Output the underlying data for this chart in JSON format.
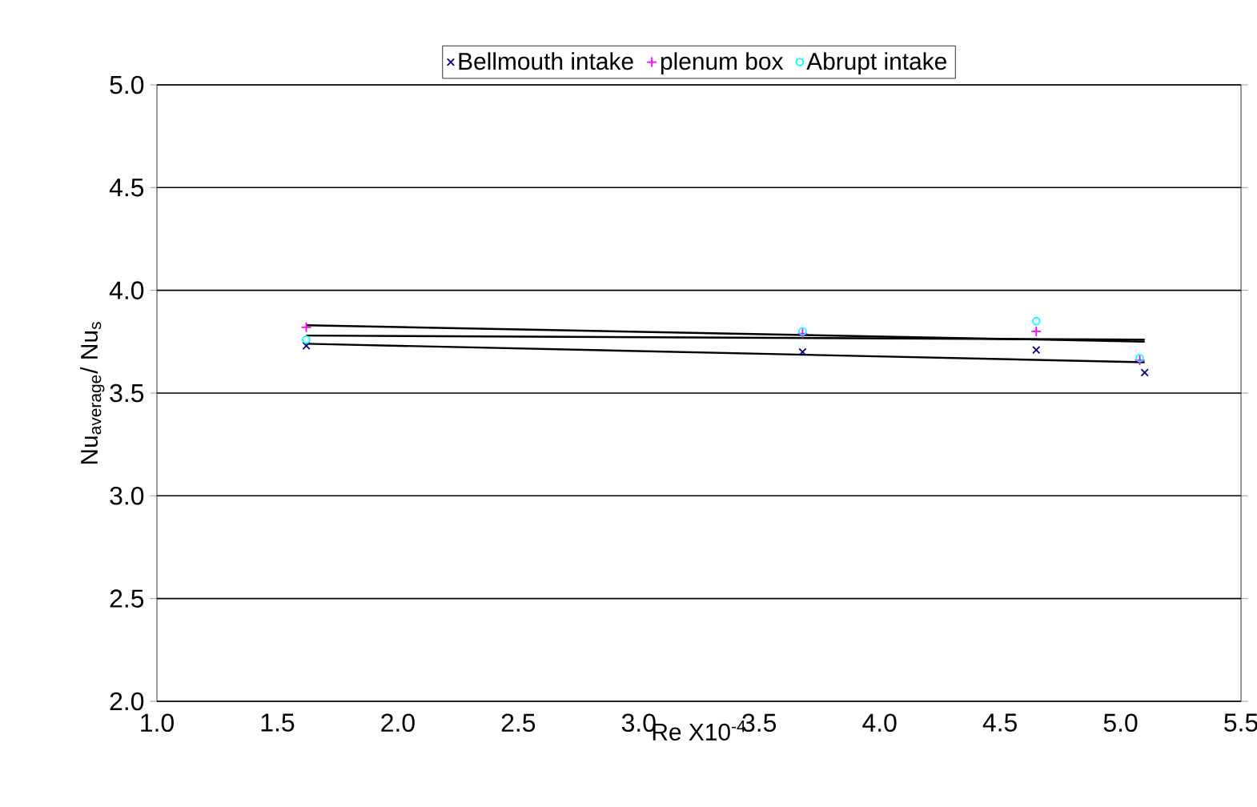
{
  "chart_data": {
    "type": "scatter",
    "xlabel": "Re X10$^{-4}$",
    "ylabel": "Nu$_{average}$/ Nu$_{s}$",
    "xlim": [
      1.0,
      5.5
    ],
    "ylim": [
      2.0,
      5.0
    ],
    "xticks": [
      {
        "value": 1.0,
        "label": "1.0"
      },
      {
        "value": 1.5,
        "label": "1.5"
      },
      {
        "value": 2.0,
        "label": "2.0"
      },
      {
        "value": 2.5,
        "label": "2.5"
      },
      {
        "value": 3.0,
        "label": "3.0"
      },
      {
        "value": 3.5,
        "label": "3.5"
      },
      {
        "value": 4.0,
        "label": "4.0"
      },
      {
        "value": 4.5,
        "label": "4.5"
      },
      {
        "value": 5.0,
        "label": "5.0"
      },
      {
        "value": 5.5,
        "label": "5.5"
      }
    ],
    "yticks": [
      {
        "value": 2.0,
        "label": "2.0"
      },
      {
        "value": 2.5,
        "label": "2.5"
      },
      {
        "value": 3.0,
        "label": "3.0"
      },
      {
        "value": 3.5,
        "label": "3.5"
      },
      {
        "value": 4.0,
        "label": "4.0"
      },
      {
        "value": 4.5,
        "label": "4.5"
      },
      {
        "value": 5.0,
        "label": "5.0"
      }
    ],
    "grid": "y",
    "legend": "top",
    "series": [
      {
        "name": "Bellmouth intake",
        "color": "#000080",
        "marker": "cross",
        "x": [
          1.62,
          3.68,
          4.65,
          5.1
        ],
        "values": [
          3.73,
          3.7,
          3.71,
          3.6
        ]
      },
      {
        "name": "plenum box",
        "color": "#ff00ff",
        "marker": "plus",
        "x": [
          1.62,
          3.68,
          4.65,
          5.08
        ],
        "values": [
          3.82,
          3.79,
          3.8,
          3.66
        ]
      },
      {
        "name": "Abrupt intake",
        "color": "#00ffff",
        "marker": "circle",
        "x": [
          1.62,
          3.68,
          4.65,
          5.08
        ],
        "values": [
          3.76,
          3.8,
          3.85,
          3.67
        ]
      },
      {
        "type": "line",
        "color": "#000000",
        "marker": "none",
        "x": [
          1.62,
          5.1
        ],
        "values": [
          3.74,
          3.65
        ]
      },
      {
        "type": "line",
        "color": "#000000",
        "marker": "none",
        "x": [
          1.62,
          5.1
        ],
        "values": [
          3.83,
          3.75
        ]
      },
      {
        "type": "line",
        "color": "#000000",
        "marker": "none",
        "x": [
          1.62,
          5.1
        ],
        "values": [
          3.78,
          3.76
        ]
      }
    ]
  }
}
